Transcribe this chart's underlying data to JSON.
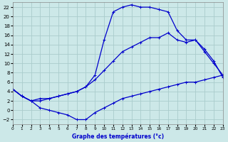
{
  "xlabel": "Graphe des températures (°c)",
  "bg_color": "#cce8e8",
  "grid_color": "#aacccc",
  "line_color": "#0000cc",
  "ylim": [
    -3,
    23
  ],
  "xlim": [
    0,
    23
  ],
  "yticks": [
    -2,
    0,
    2,
    4,
    6,
    8,
    10,
    12,
    14,
    16,
    18,
    20,
    22
  ],
  "xticks": [
    0,
    1,
    2,
    3,
    4,
    5,
    6,
    7,
    8,
    9,
    10,
    11,
    12,
    13,
    14,
    15,
    16,
    17,
    18,
    19,
    20,
    21,
    22,
    23
  ],
  "line_max_x": [
    0,
    1,
    2,
    3,
    4,
    5,
    6,
    7,
    8,
    9,
    10,
    11,
    12,
    13,
    14,
    15,
    16,
    17,
    18,
    19,
    20,
    21,
    22,
    23
  ],
  "line_max_y": [
    4.5,
    3.0,
    2.0,
    2.5,
    2.5,
    3.0,
    3.5,
    4.0,
    5.0,
    7.5,
    15.0,
    21.0,
    22.0,
    22.5,
    22.0,
    22.0,
    21.5,
    21.0,
    17.0,
    15.0,
    15.0,
    13.0,
    10.5,
    7.0
  ],
  "line_min_x": [
    0,
    1,
    2,
    3,
    4,
    5,
    6,
    7,
    8,
    9,
    10,
    11,
    12,
    13,
    14,
    15,
    16,
    17,
    18,
    19,
    20,
    21,
    22,
    23
  ],
  "line_min_y": [
    4.5,
    3.0,
    2.0,
    0.5,
    0.0,
    -0.5,
    -1.0,
    -2.0,
    -2.0,
    -0.5,
    0.5,
    1.5,
    2.5,
    3.0,
    3.5,
    4.0,
    4.5,
    5.0,
    5.5,
    6.0,
    6.0,
    6.5,
    7.0,
    7.5
  ],
  "line_mean_x": [
    0,
    1,
    2,
    3,
    4,
    5,
    6,
    7,
    8,
    9,
    10,
    11,
    12,
    13,
    14,
    15,
    16,
    17,
    18,
    19,
    20,
    21,
    22,
    23
  ],
  "line_mean_y": [
    4.5,
    3.0,
    2.0,
    2.0,
    2.5,
    3.0,
    3.5,
    4.0,
    5.0,
    6.5,
    8.5,
    10.5,
    12.5,
    13.5,
    14.5,
    15.5,
    15.5,
    16.5,
    15.0,
    14.5,
    15.0,
    12.5,
    10.0,
    7.5
  ]
}
